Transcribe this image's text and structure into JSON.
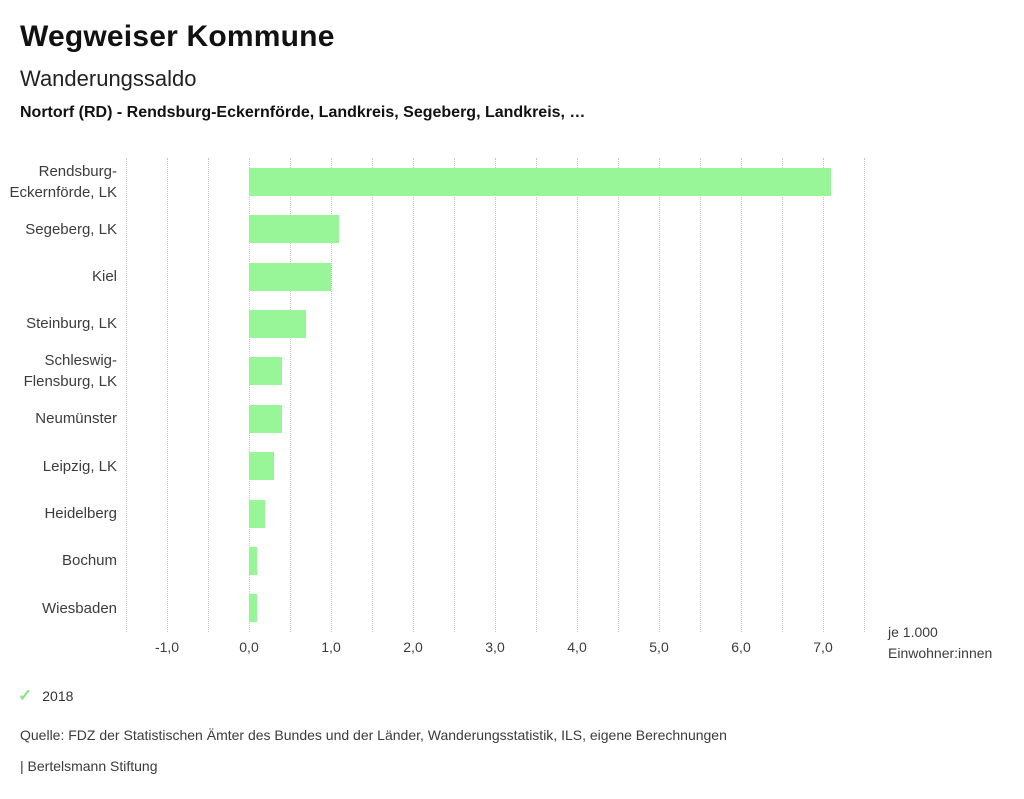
{
  "header": {
    "title": "Wegweiser Kommune",
    "subtitle": "Wanderungssaldo",
    "context": "Nortorf (RD) - Rendsburg-Eckernförde, Landkreis, Segeberg, Landkreis, …"
  },
  "chart_data": {
    "type": "bar",
    "orientation": "horizontal",
    "title": "Wanderungssaldo",
    "categories": [
      "Rendsburg-Eckernförde, LK",
      "Segeberg, LK",
      "Kiel",
      "Steinburg, LK",
      "Schleswig-Flensburg, LK",
      "Neumünster",
      "Leipzig, LK",
      "Heidelberg",
      "Bochum",
      "Wiesbaden"
    ],
    "values": [
      7.1,
      1.1,
      1.0,
      0.7,
      0.4,
      0.4,
      0.3,
      0.2,
      0.1,
      0.1
    ],
    "series_name": "2018",
    "legend": [
      "2018"
    ],
    "legend_position": "bottom-left",
    "xlabel": "je 1.000 Einwohner:innen",
    "ylabel": "",
    "xlim": [
      -1.5,
      7.5
    ],
    "grid": true,
    "grid_step": 0.5,
    "x_major_ticks": [
      -1,
      0,
      1,
      2,
      3,
      4,
      5,
      6,
      7
    ],
    "x_tick_labels": [
      "-1,0",
      "0,0",
      "1,0",
      "2,0",
      "3,0",
      "4,0",
      "5,0",
      "6,0",
      "7,0"
    ],
    "bar_color": "#98f698",
    "gridline_color": "#c6c6c6"
  },
  "icons": {
    "legend_check": "✓",
    "legend_check_color": "#8ce28c"
  },
  "footer": {
    "source": "Quelle: FDZ der Statistischen Ämter des Bundes und der Länder, Wanderungsstatistik, ILS, eigene Berechnungen",
    "attribution": "| Bertelsmann Stiftung"
  }
}
